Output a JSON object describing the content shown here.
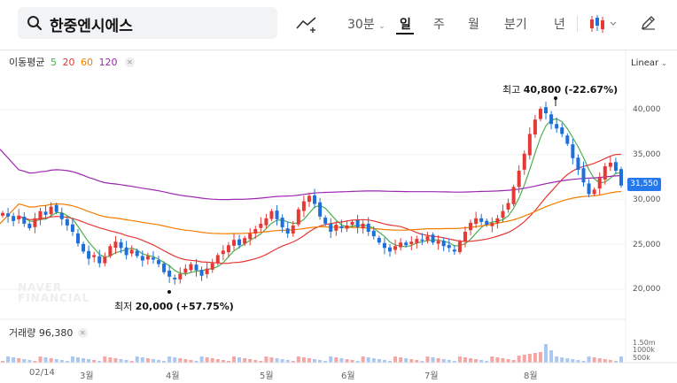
{
  "search": {
    "stock_name": "한중엔시에스"
  },
  "intervals": [
    {
      "label": "30분",
      "active": false
    },
    {
      "label": "일",
      "active": true
    },
    {
      "label": "주",
      "active": false
    },
    {
      "label": "월",
      "active": false
    },
    {
      "label": "분기",
      "active": false
    },
    {
      "label": "년",
      "active": false
    }
  ],
  "scale_mode": "Linear",
  "ma_legend": {
    "title": "이동평균",
    "periods": [
      {
        "label": "5",
        "color": "#4caf50"
      },
      {
        "label": "20",
        "color": "#e53935"
      },
      {
        "label": "60",
        "color": "#f57c00"
      },
      {
        "label": "120",
        "color": "#9c27b0"
      }
    ]
  },
  "colors": {
    "up": "#e53935",
    "down": "#1e6fd9",
    "accent": "#2679ed"
  },
  "price_axis": [
    "40,000",
    "35,000",
    "30,000",
    "25,000",
    "20,000"
  ],
  "current_price": "31,550",
  "high_note": {
    "label": "최고",
    "value": "40,800",
    "change": "(-22.67%)"
  },
  "low_note": {
    "label": "최저",
    "value": "20,000",
    "change": "(+57.75%)"
  },
  "watermark": [
    "NAVER",
    "FINANCIAL"
  ],
  "volume": {
    "title": "거래량",
    "value": "96,380",
    "axis": [
      "1.50m",
      "1000k",
      "500k"
    ]
  },
  "date_axis": [
    "02/14",
    "3월",
    "4월",
    "5월",
    "6월",
    "7월",
    "8월"
  ],
  "chart_data": {
    "type": "candlestick",
    "ylim": [
      17500,
      42500
    ],
    "closes": [
      28500,
      28100,
      27600,
      28200,
      27300,
      26800,
      27900,
      28700,
      28300,
      29200,
      28600,
      27800,
      27100,
      26400,
      25100,
      24200,
      23400,
      23800,
      22900,
      23600,
      24800,
      25300,
      24600,
      23800,
      24400,
      23700,
      23200,
      23700,
      23300,
      22800,
      21900,
      21400,
      21100,
      21700,
      22300,
      22800,
      22100,
      21500,
      22300,
      22900,
      23800,
      24300,
      24900,
      25500,
      24900,
      25700,
      26200,
      26700,
      27300,
      27900,
      28700,
      27800,
      26900,
      26200,
      27100,
      28900,
      29800,
      30400,
      29500,
      28100,
      27300,
      26400,
      27200,
      26800,
      27100,
      27500,
      26900,
      27300,
      26400,
      25900,
      25200,
      24600,
      24200,
      24800,
      25200,
      24900,
      25300,
      25600,
      25400,
      25900,
      25200,
      25400,
      24800,
      24600,
      24200,
      25300,
      26400,
      27400,
      27900,
      27500,
      27200,
      27400,
      27900,
      28700,
      29600,
      31400,
      33200,
      35100,
      37300,
      38900,
      40100,
      39600,
      38400,
      37900,
      37300,
      36200,
      34600,
      33300,
      31900,
      30600,
      31100,
      32400,
      33700,
      34100,
      33200,
      31550
    ],
    "high": 40800,
    "low": 20000,
    "current": 31550
  }
}
